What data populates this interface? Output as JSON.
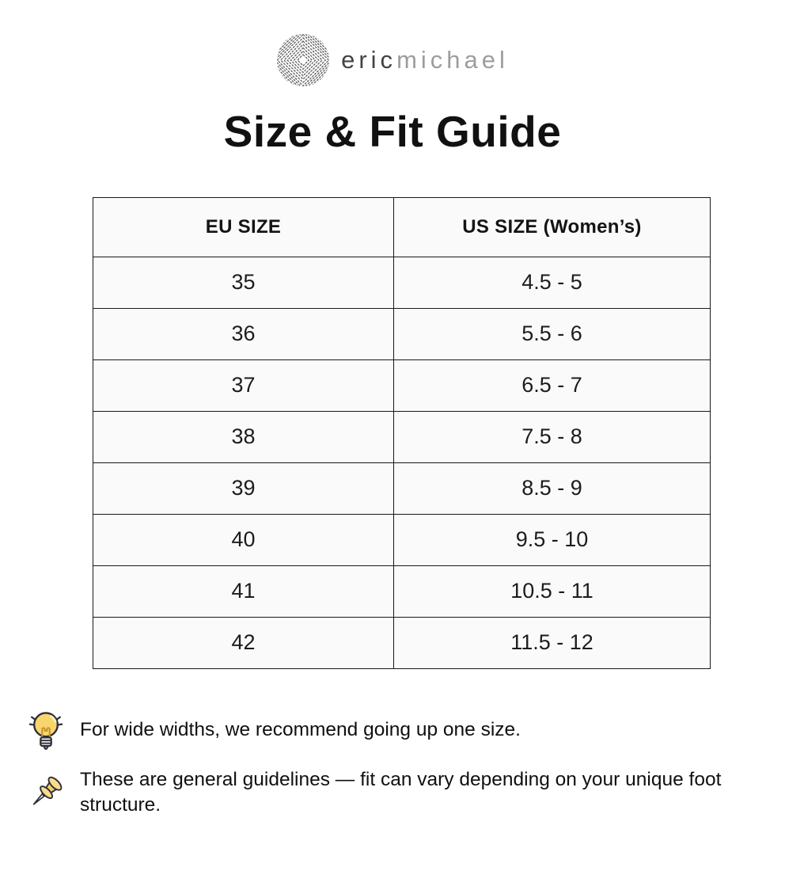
{
  "brand": {
    "name_primary": "eric",
    "name_secondary": "michael",
    "logo_icon": "diamond-pattern-icon"
  },
  "page": {
    "title": "Size & Fit Guide"
  },
  "size_table": {
    "columns": [
      "EU SIZE",
      "US SIZE (Women’s)"
    ],
    "rows": [
      [
        "35",
        "4.5 - 5"
      ],
      [
        "36",
        "5.5 - 6"
      ],
      [
        "37",
        "6.5 - 7"
      ],
      [
        "38",
        "7.5 - 8"
      ],
      [
        "39",
        "8.5 - 9"
      ],
      [
        "40",
        "9.5 - 10"
      ],
      [
        "41",
        "10.5 - 11"
      ],
      [
        "42",
        "11.5 - 12"
      ]
    ]
  },
  "notes": [
    {
      "icon": "lightbulb-icon",
      "text": "For wide widths, we recommend going up one size."
    },
    {
      "icon": "pushpin-icon",
      "text": "These are general guidelines — fit can vary depending on your unique foot structure."
    }
  ],
  "colors": {
    "table_border": "#191919",
    "cell_background": "#fafafa",
    "brand_gray_dark": "#434343",
    "brand_gray_light": "#9d9d9d",
    "bulb_yellow": "#f8d66d",
    "pin_gold": "#f5cd62",
    "tip_purple": "#7a6cc0"
  }
}
